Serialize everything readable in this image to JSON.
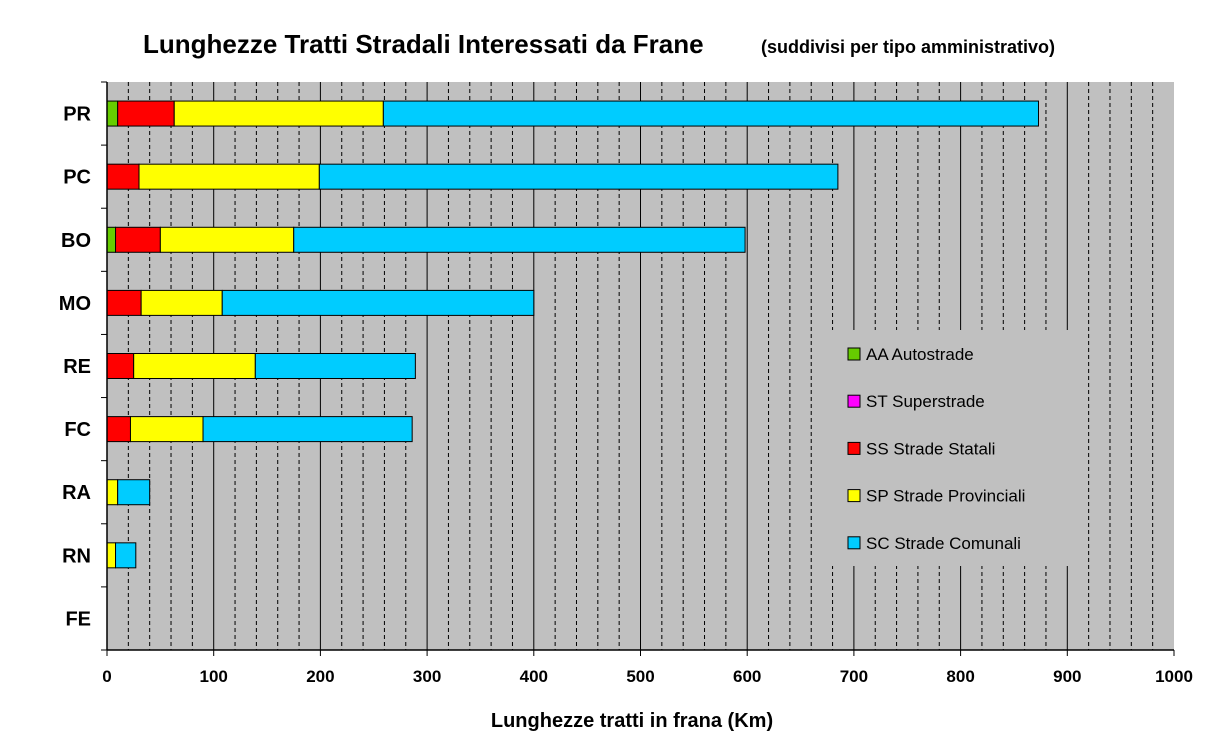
{
  "chart_data": {
    "type": "bar",
    "orientation": "horizontal",
    "stacked": true,
    "title": "Lunghezze Tratti Stradali Interessati da Frane",
    "subtitle": "(suddivisi per tipo amministrativo)",
    "xlabel": "Lunghezze tratti in frana (Km)",
    "ylabel": "",
    "xlim": [
      0,
      1000
    ],
    "x_ticks": [
      "0",
      "100",
      "200",
      "300",
      "400",
      "500",
      "600",
      "700",
      "800",
      "900",
      "1000"
    ],
    "grid": true,
    "legend_position": "right",
    "categories": [
      "PR",
      "PC",
      "BO",
      "MO",
      "RE",
      "FC",
      "RA",
      "RN",
      "FE"
    ],
    "series": [
      {
        "name": "AA Autostrade",
        "color": "#66cc00",
        "values": [
          10,
          0,
          8,
          0,
          0,
          0,
          0,
          0,
          0
        ]
      },
      {
        "name": "ST Superstrade",
        "color": "#ff00ff",
        "values": [
          0,
          0,
          0,
          0,
          0,
          0,
          0,
          0,
          0
        ]
      },
      {
        "name": "SS Strade Statali",
        "color": "#ff0000",
        "values": [
          53,
          30,
          42,
          32,
          25,
          22,
          0,
          0,
          0
        ]
      },
      {
        "name": "SP Strade Provinciali",
        "color": "#ffff00",
        "values": [
          196,
          169,
          125,
          76,
          114,
          68,
          10,
          8,
          0
        ]
      },
      {
        "name": "SC Strade Comunali",
        "color": "#00ccff",
        "values": [
          614,
          486,
          423,
          292,
          150,
          196,
          30,
          19,
          0
        ]
      }
    ]
  }
}
